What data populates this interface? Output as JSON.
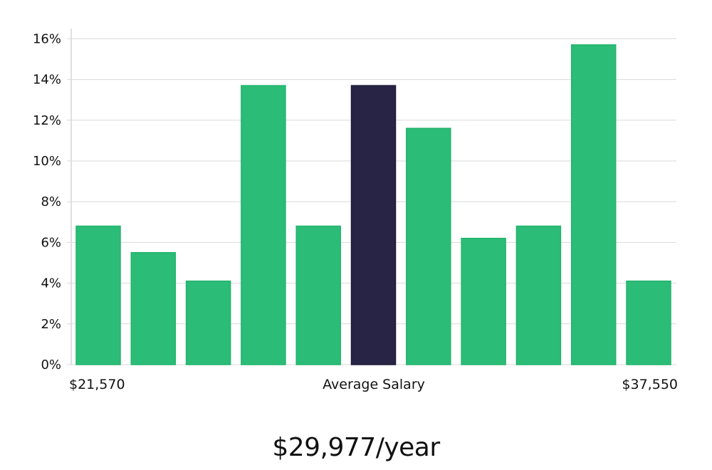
{
  "chart_data": {
    "type": "bar",
    "values": [
      6.8,
      5.5,
      4.1,
      13.7,
      6.8,
      13.7,
      11.6,
      6.2,
      6.8,
      15.7,
      4.1
    ],
    "highlight_index": 5,
    "y_ticks": [
      "0%",
      "2%",
      "4%",
      "6%",
      "8%",
      "10%",
      "12%",
      "14%",
      "16%"
    ],
    "ylim": [
      0,
      16.5
    ],
    "grid": true,
    "x_min_label": "$21,570",
    "x_center_label": "Average Salary",
    "x_max_label": "$37,550",
    "colors": {
      "bar": "#2bbd77",
      "bar_edge": "#22b36c",
      "highlight": "#282446",
      "grid": "#d9d9d9",
      "axis": "#bfbfbf"
    }
  },
  "summary": {
    "average_salary": "$29,977/year"
  }
}
